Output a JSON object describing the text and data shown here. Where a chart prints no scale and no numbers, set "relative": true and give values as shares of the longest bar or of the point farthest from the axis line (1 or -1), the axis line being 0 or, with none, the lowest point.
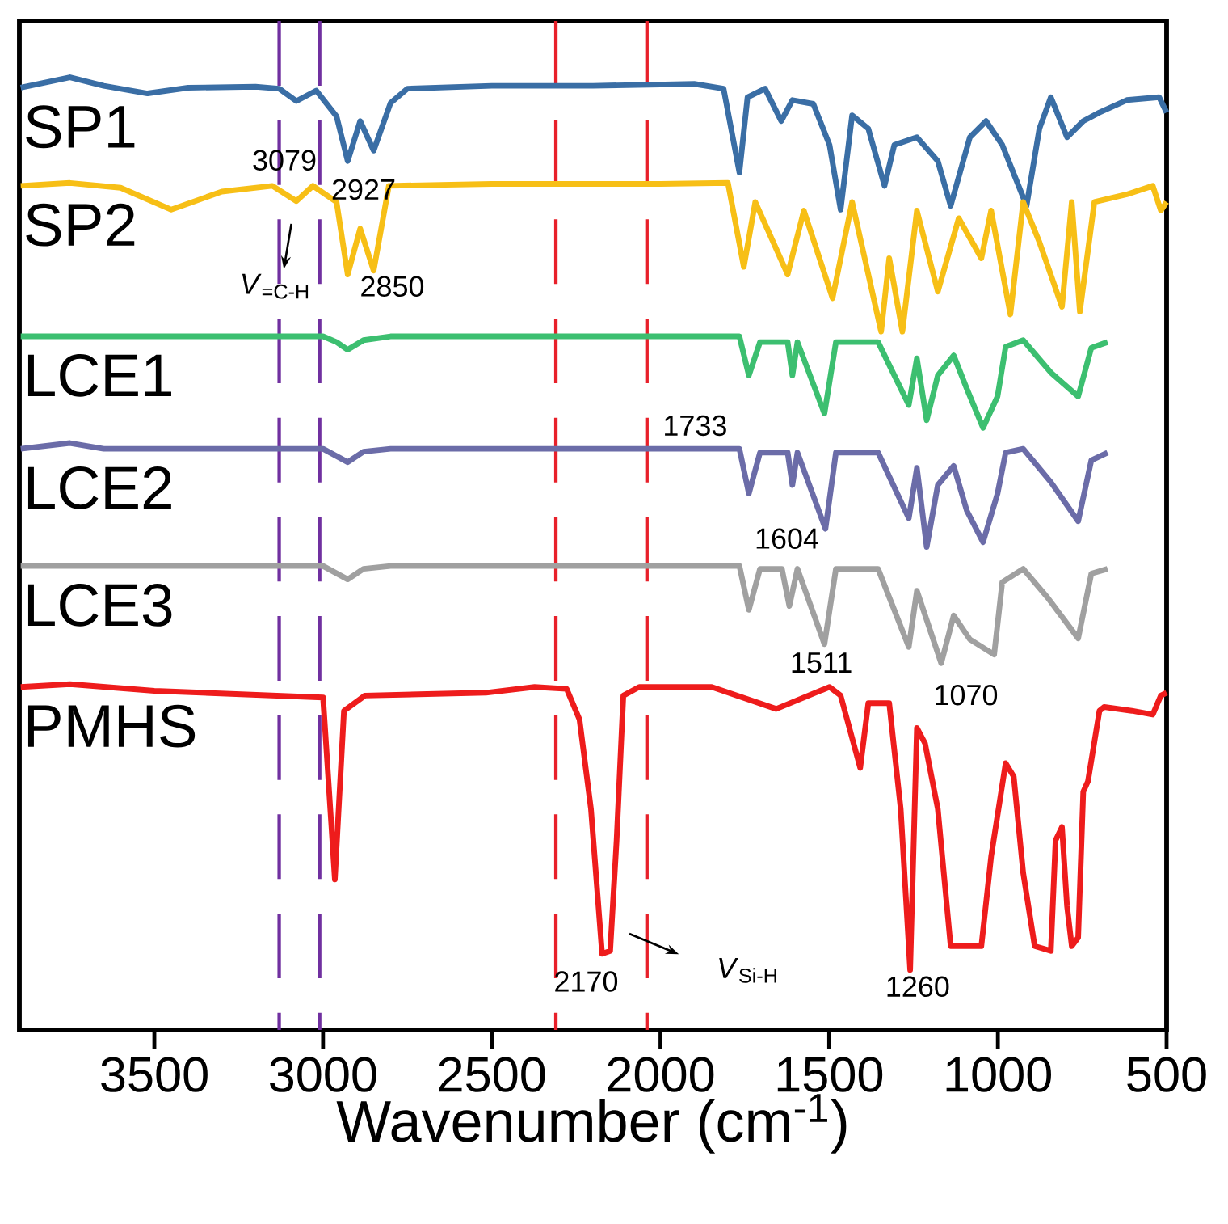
{
  "chart_data": {
    "type": "line",
    "xlabel": "Wavenumber (cm$^{-1}$)",
    "relative": true,
    "tick_labels": "x",
    "xlim": [
      3900,
      500
    ],
    "xticks": [
      3500,
      3000,
      2500,
      2000,
      1500,
      1000,
      500
    ],
    "series": [
      {
        "name": "SP1",
        "color": "#3a6ea5",
        "x": [
          3896,
          3750,
          3650,
          3520,
          3400,
          3200,
          3130,
          3079,
          3020,
          2960,
          2927,
          2890,
          2850,
          2800,
          2750,
          2500,
          2200,
          1900,
          1813,
          1766,
          1742,
          1690,
          1642,
          1609,
          1547,
          1499,
          1466,
          1432,
          1384,
          1336,
          1307,
          1240,
          1178,
          1140,
          1083,
          1035,
          987,
          915,
          877,
          843,
          795,
          747,
          699,
          618,
          522,
          500
        ],
        "values": [
          0.989,
          1.0,
          0.991,
          0.983,
          0.989,
          0.99,
          0.988,
          0.975,
          0.986,
          0.959,
          0.912,
          0.954,
          0.923,
          0.973,
          0.988,
          0.991,
          0.991,
          0.993,
          0.988,
          0.9,
          0.979,
          0.988,
          0.954,
          0.976,
          0.972,
          0.929,
          0.861,
          0.96,
          0.946,
          0.886,
          0.929,
          0.937,
          0.912,
          0.865,
          0.937,
          0.954,
          0.929,
          0.865,
          0.946,
          0.979,
          0.937,
          0.954,
          0.963,
          0.976,
          0.979,
          0.963
        ]
      },
      {
        "name": "SP2",
        "color": "#f7bf16",
        "x": [
          3896,
          3750,
          3600,
          3450,
          3300,
          3150,
          3079,
          3030,
          2960,
          2927,
          2890,
          2850,
          2805,
          2500,
          2000,
          1800,
          1753,
          1719,
          1623,
          1575,
          1490,
          1432,
          1346,
          1322,
          1283,
          1240,
          1178,
          1116,
          1049,
          1020,
          963,
          925,
          877,
          810,
          781,
          757,
          714,
          618,
          541,
          517,
          500
        ],
        "values": [
          0.886,
          0.889,
          0.884,
          0.861,
          0.88,
          0.886,
          0.87,
          0.886,
          0.869,
          0.793,
          0.841,
          0.797,
          0.886,
          0.888,
          0.888,
          0.889,
          0.801,
          0.869,
          0.793,
          0.86,
          0.768,
          0.869,
          0.733,
          0.81,
          0.733,
          0.86,
          0.775,
          0.852,
          0.81,
          0.86,
          0.751,
          0.869,
          0.827,
          0.759,
          0.869,
          0.754,
          0.869,
          0.877,
          0.886,
          0.86,
          0.869
        ]
      },
      {
        "name": "LCE1",
        "color": "#3cbf70",
        "x": [
          3896,
          3500,
          3000,
          2960,
          2927,
          2880,
          2800,
          2000,
          1766,
          1738,
          1705,
          1623,
          1609,
          1594,
          1514,
          1480,
          1355,
          1264,
          1240,
          1211,
          1178,
          1131,
          1092,
          1044,
          1001,
          977,
          925,
          843,
          762,
          723,
          675
        ],
        "values": [
          0.728,
          0.728,
          0.728,
          0.722,
          0.714,
          0.724,
          0.728,
          0.728,
          0.728,
          0.687,
          0.722,
          0.722,
          0.687,
          0.722,
          0.647,
          0.722,
          0.722,
          0.656,
          0.705,
          0.64,
          0.687,
          0.708,
          0.673,
          0.632,
          0.665,
          0.717,
          0.724,
          0.69,
          0.665,
          0.716,
          0.722
        ]
      },
      {
        "name": "LCE2",
        "color": "#6b6ca8",
        "x": [
          3896,
          3750,
          3650,
          3000,
          2927,
          2880,
          2800,
          1766,
          1738,
          1705,
          1623,
          1609,
          1594,
          1511,
          1480,
          1355,
          1264,
          1240,
          1211,
          1178,
          1131,
          1092,
          1044,
          1001,
          977,
          925,
          843,
          762,
          723,
          675
        ],
        "values": [
          0.61,
          0.616,
          0.61,
          0.61,
          0.596,
          0.607,
          0.61,
          0.61,
          0.563,
          0.606,
          0.606,
          0.572,
          0.606,
          0.526,
          0.606,
          0.606,
          0.537,
          0.59,
          0.507,
          0.572,
          0.592,
          0.545,
          0.512,
          0.563,
          0.606,
          0.61,
          0.575,
          0.534,
          0.598,
          0.606
        ]
      },
      {
        "name": "LCE3",
        "color": "#a0a0a0",
        "x": [
          3896,
          3000,
          2927,
          2880,
          2800,
          1766,
          1738,
          1705,
          1640,
          1618,
          1594,
          1514,
          1480,
          1355,
          1264,
          1240,
          1168,
          1131,
          1083,
          1011,
          987,
          925,
          853,
          762,
          723,
          675
        ],
        "values": [
          0.487,
          0.487,
          0.473,
          0.484,
          0.487,
          0.487,
          0.441,
          0.484,
          0.484,
          0.445,
          0.484,
          0.405,
          0.484,
          0.484,
          0.402,
          0.461,
          0.385,
          0.435,
          0.41,
          0.394,
          0.47,
          0.484,
          0.454,
          0.411,
          0.479,
          0.484
        ]
      },
      {
        "name": "PMHS",
        "color": "#ee1c1c",
        "x": [
          3896,
          3750,
          3500,
          3000,
          2965,
          2938,
          2876,
          2517,
          2373,
          2278,
          2240,
          2206,
          2173,
          2149,
          2130,
          2110,
          2063,
          1848,
          1657,
          1499,
          1466,
          1408,
          1384,
          1322,
          1288,
          1260,
          1240,
          1216,
          1178,
          1140,
          1049,
          1020,
          977,
          953,
          925,
          891,
          843,
          829,
          810,
          795,
          781,
          762,
          747,
          733,
          699,
          685,
          603,
          541,
          517,
          500
        ],
        "values": [
          0.36,
          0.363,
          0.356,
          0.349,
          0.158,
          0.335,
          0.351,
          0.354,
          0.36,
          0.358,
          0.326,
          0.232,
          0.08,
          0.083,
          0.199,
          0.351,
          0.36,
          0.36,
          0.337,
          0.36,
          0.351,
          0.275,
          0.343,
          0.343,
          0.232,
          0.063,
          0.317,
          0.301,
          0.232,
          0.088,
          0.088,
          0.182,
          0.28,
          0.266,
          0.165,
          0.088,
          0.083,
          0.199,
          0.213,
          0.13,
          0.088,
          0.097,
          0.25,
          0.261,
          0.335,
          0.339,
          0.335,
          0.331,
          0.351,
          0.354
        ]
      }
    ],
    "ref_lines": [
      {
        "axis": "x",
        "value": 3130,
        "color": "#7030a0",
        "line_style": "dashed"
      },
      {
        "axis": "x",
        "value": 3010,
        "color": "#7030a0",
        "line_style": "dashed"
      },
      {
        "axis": "x",
        "value": 2310,
        "color": "#e8202a",
        "line_style": "dashed"
      },
      {
        "axis": "x",
        "value": 2040,
        "color": "#e8202a",
        "line_style": "dashed"
      }
    ],
    "annotations": [
      "3079",
      "2927",
      "2850",
      "*V*$_{=C-H}$",
      "1733",
      "1604",
      "1511",
      "1070",
      "2170",
      "*V*$_{Si-H}$",
      "1260"
    ]
  }
}
